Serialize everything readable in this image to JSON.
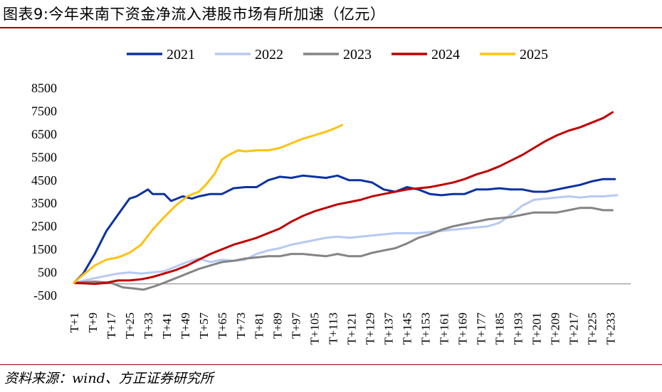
{
  "figure": {
    "title": "图表9:今年来南下资金净流入港股市场有所加速（亿元）",
    "source": "资料来源：wind、方正证券研究所"
  },
  "chart_data": {
    "type": "line",
    "title": "",
    "xlabel": "",
    "ylabel": "",
    "ylim": [
      -500,
      8500
    ],
    "yticks": [
      -500,
      500,
      1500,
      2500,
      3500,
      4500,
      5500,
      6500,
      7500,
      8500
    ],
    "xrange": [
      1,
      240
    ],
    "xticks": [
      "T+1",
      "T+9",
      "T+17",
      "T+25",
      "T+33",
      "T+41",
      "T+49",
      "T+57",
      "T+65",
      "T+73",
      "T+81",
      "T+89",
      "T+97",
      "T+105",
      "T+113",
      "T+121",
      "T+129",
      "T+137",
      "T+145",
      "T+153",
      "T+161",
      "T+169",
      "T+177",
      "T+185",
      "T+193",
      "T+201",
      "T+209",
      "T+217",
      "T+225",
      "T+233"
    ],
    "legend_position": "top",
    "grid": false,
    "series": [
      {
        "name": "2021",
        "color": "#0b32a0",
        "points": [
          [
            1,
            50
          ],
          [
            5,
            450
          ],
          [
            10,
            1300
          ],
          [
            15,
            2300
          ],
          [
            20,
            3000
          ],
          [
            25,
            3700
          ],
          [
            28,
            3800
          ],
          [
            33,
            4100
          ],
          [
            35,
            3900
          ],
          [
            40,
            3900
          ],
          [
            43,
            3600
          ],
          [
            48,
            3800
          ],
          [
            52,
            3700
          ],
          [
            55,
            3800
          ],
          [
            60,
            3900
          ],
          [
            65,
            3900
          ],
          [
            70,
            4150
          ],
          [
            75,
            4200
          ],
          [
            80,
            4200
          ],
          [
            85,
            4500
          ],
          [
            90,
            4650
          ],
          [
            95,
            4600
          ],
          [
            100,
            4700
          ],
          [
            105,
            4650
          ],
          [
            110,
            4600
          ],
          [
            115,
            4700
          ],
          [
            120,
            4500
          ],
          [
            125,
            4500
          ],
          [
            130,
            4400
          ],
          [
            135,
            4100
          ],
          [
            140,
            4000
          ],
          [
            145,
            4200
          ],
          [
            150,
            4100
          ],
          [
            155,
            3900
          ],
          [
            160,
            3850
          ],
          [
            165,
            3900
          ],
          [
            170,
            3900
          ],
          [
            175,
            4100
          ],
          [
            180,
            4100
          ],
          [
            185,
            4150
          ],
          [
            190,
            4100
          ],
          [
            195,
            4100
          ],
          [
            200,
            4000
          ],
          [
            205,
            4000
          ],
          [
            210,
            4100
          ],
          [
            215,
            4200
          ],
          [
            220,
            4300
          ],
          [
            225,
            4450
          ],
          [
            230,
            4550
          ],
          [
            235,
            4550
          ]
        ]
      },
      {
        "name": "2022",
        "color": "#b7c9f2",
        "points": [
          [
            1,
            50
          ],
          [
            10,
            250
          ],
          [
            20,
            450
          ],
          [
            25,
            500
          ],
          [
            30,
            450
          ],
          [
            40,
            550
          ],
          [
            50,
            950
          ],
          [
            55,
            1100
          ],
          [
            60,
            950
          ],
          [
            65,
            1050
          ],
          [
            70,
            1000
          ],
          [
            75,
            1050
          ],
          [
            80,
            1300
          ],
          [
            85,
            1450
          ],
          [
            90,
            1550
          ],
          [
            95,
            1700
          ],
          [
            100,
            1800
          ],
          [
            105,
            1900
          ],
          [
            110,
            2000
          ],
          [
            115,
            2050
          ],
          [
            120,
            2000
          ],
          [
            125,
            2050
          ],
          [
            130,
            2100
          ],
          [
            135,
            2150
          ],
          [
            140,
            2200
          ],
          [
            145,
            2200
          ],
          [
            150,
            2200
          ],
          [
            155,
            2250
          ],
          [
            160,
            2300
          ],
          [
            165,
            2350
          ],
          [
            170,
            2400
          ],
          [
            175,
            2450
          ],
          [
            180,
            2500
          ],
          [
            185,
            2650
          ],
          [
            190,
            3000
          ],
          [
            195,
            3400
          ],
          [
            200,
            3650
          ],
          [
            205,
            3700
          ],
          [
            210,
            3750
          ],
          [
            215,
            3800
          ],
          [
            220,
            3750
          ],
          [
            225,
            3800
          ],
          [
            230,
            3800
          ],
          [
            236,
            3850
          ]
        ]
      },
      {
        "name": "2023",
        "color": "#848484",
        "points": [
          [
            1,
            50
          ],
          [
            10,
            100
          ],
          [
            17,
            50
          ],
          [
            22,
            -150
          ],
          [
            27,
            -200
          ],
          [
            31,
            -250
          ],
          [
            36,
            -100
          ],
          [
            40,
            50
          ],
          [
            45,
            250
          ],
          [
            50,
            450
          ],
          [
            55,
            650
          ],
          [
            60,
            800
          ],
          [
            65,
            950
          ],
          [
            70,
            1000
          ],
          [
            75,
            1100
          ],
          [
            80,
            1150
          ],
          [
            85,
            1200
          ],
          [
            90,
            1200
          ],
          [
            95,
            1300
          ],
          [
            100,
            1300
          ],
          [
            105,
            1250
          ],
          [
            110,
            1200
          ],
          [
            115,
            1300
          ],
          [
            120,
            1200
          ],
          [
            125,
            1200
          ],
          [
            130,
            1350
          ],
          [
            135,
            1450
          ],
          [
            140,
            1550
          ],
          [
            145,
            1750
          ],
          [
            150,
            2000
          ],
          [
            155,
            2150
          ],
          [
            160,
            2350
          ],
          [
            165,
            2500
          ],
          [
            170,
            2600
          ],
          [
            175,
            2700
          ],
          [
            180,
            2800
          ],
          [
            185,
            2850
          ],
          [
            190,
            2900
          ],
          [
            195,
            3000
          ],
          [
            200,
            3100
          ],
          [
            205,
            3100
          ],
          [
            210,
            3100
          ],
          [
            215,
            3200
          ],
          [
            220,
            3300
          ],
          [
            225,
            3300
          ],
          [
            230,
            3200
          ],
          [
            234,
            3200
          ]
        ]
      },
      {
        "name": "2024",
        "color": "#c00000",
        "points": [
          [
            1,
            50
          ],
          [
            10,
            0
          ],
          [
            15,
            50
          ],
          [
            20,
            150
          ],
          [
            25,
            150
          ],
          [
            30,
            200
          ],
          [
            35,
            300
          ],
          [
            40,
            450
          ],
          [
            45,
            600
          ],
          [
            50,
            800
          ],
          [
            55,
            1050
          ],
          [
            60,
            1300
          ],
          [
            65,
            1500
          ],
          [
            70,
            1700
          ],
          [
            75,
            1850
          ],
          [
            80,
            2000
          ],
          [
            85,
            2200
          ],
          [
            90,
            2400
          ],
          [
            95,
            2700
          ],
          [
            100,
            2950
          ],
          [
            105,
            3150
          ],
          [
            110,
            3300
          ],
          [
            115,
            3450
          ],
          [
            120,
            3550
          ],
          [
            125,
            3650
          ],
          [
            130,
            3800
          ],
          [
            135,
            3900
          ],
          [
            140,
            4000
          ],
          [
            145,
            4100
          ],
          [
            150,
            4150
          ],
          [
            155,
            4200
          ],
          [
            160,
            4300
          ],
          [
            165,
            4400
          ],
          [
            170,
            4550
          ],
          [
            175,
            4750
          ],
          [
            180,
            4900
          ],
          [
            185,
            5100
          ],
          [
            190,
            5350
          ],
          [
            195,
            5600
          ],
          [
            200,
            5900
          ],
          [
            205,
            6200
          ],
          [
            210,
            6450
          ],
          [
            215,
            6650
          ],
          [
            220,
            6800
          ],
          [
            225,
            7000
          ],
          [
            230,
            7200
          ],
          [
            234,
            7450
          ]
        ]
      },
      {
        "name": "2025",
        "color": "#fec20e",
        "points": [
          [
            1,
            50
          ],
          [
            5,
            400
          ],
          [
            10,
            800
          ],
          [
            15,
            1050
          ],
          [
            20,
            1150
          ],
          [
            25,
            1350
          ],
          [
            30,
            1700
          ],
          [
            35,
            2350
          ],
          [
            40,
            2900
          ],
          [
            45,
            3400
          ],
          [
            50,
            3800
          ],
          [
            55,
            4000
          ],
          [
            58,
            4300
          ],
          [
            62,
            4800
          ],
          [
            65,
            5400
          ],
          [
            68,
            5600
          ],
          [
            72,
            5800
          ],
          [
            75,
            5750
          ],
          [
            80,
            5800
          ],
          [
            85,
            5800
          ],
          [
            90,
            5900
          ],
          [
            95,
            6100
          ],
          [
            100,
            6300
          ],
          [
            105,
            6450
          ],
          [
            110,
            6600
          ],
          [
            115,
            6800
          ],
          [
            117,
            6900
          ]
        ]
      }
    ]
  }
}
